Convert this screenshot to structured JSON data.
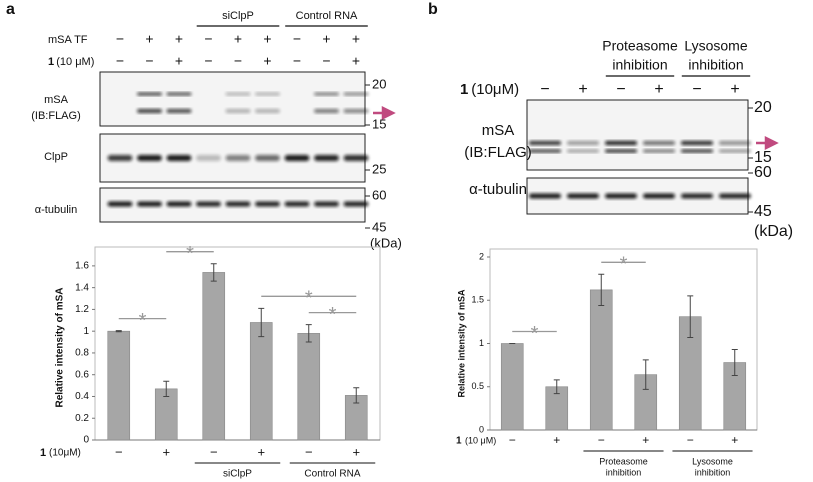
{
  "panel_labels": [
    "a",
    "b"
  ],
  "blots": [
    {
      "treatments": [
        {
          "label": "mSA TF",
          "signs": [
            "−",
            "+",
            "+",
            "−",
            "+",
            "+",
            "−",
            "+",
            "+"
          ]
        },
        {
          "compound": "1",
          "dose": "(10 μM)",
          "signs": [
            "−",
            "−",
            "+",
            "−",
            "−",
            "+",
            "−",
            "−",
            "+"
          ]
        }
      ],
      "groups": [
        {
          "label": [
            "siClpP"
          ],
          "from": 3,
          "to": 5
        },
        {
          "label": [
            "Control RNA"
          ],
          "from": 6,
          "to": 8
        }
      ],
      "rows": [
        {
          "label": [
            "mSA",
            "(IB:FLAG)"
          ],
          "markers": [
            20,
            15
          ]
        },
        {
          "label": [
            "ClpP"
          ],
          "markers": [
            25
          ]
        },
        {
          "label": [
            "α-tubulin"
          ],
          "markers": [
            60,
            45
          ]
        }
      ],
      "unit": "(kDa)"
    },
    {
      "treatments": [
        {
          "compound": "1",
          "dose": "(10μM)",
          "signs": [
            "−",
            "+",
            "−",
            "+",
            "−",
            "+"
          ]
        }
      ],
      "groups": [
        {
          "label": [
            "Proteasome",
            "inhibition"
          ],
          "from": 2,
          "to": 3
        },
        {
          "label": [
            "Lysosome",
            "inhibition"
          ],
          "from": 4,
          "to": 5
        }
      ],
      "rows": [
        {
          "label": [
            "mSA",
            "(IB:FLAG)"
          ],
          "markers": [
            20,
            15
          ]
        },
        {
          "label": [
            "α-tubulin"
          ],
          "markers": [
            60,
            45
          ]
        }
      ],
      "unit": "(kDa)"
    }
  ],
  "chart_data": [
    {
      "type": "bar",
      "ylabel": "Relative intensity of mSA",
      "xlabel": {
        "compound": "1",
        "dose": "(10μM)"
      },
      "categories": [
        "−",
        "+",
        "−",
        "+",
        "−",
        "+"
      ],
      "series": [
        {
          "color": "#a6a6a6",
          "values": [
            1.0,
            0.47,
            1.54,
            1.08,
            0.98,
            0.41
          ],
          "errors": [
            0.005,
            0.07,
            0.08,
            0.13,
            0.08,
            0.07
          ]
        }
      ],
      "ylim": [
        0,
        1.7
      ],
      "yticks": [
        0,
        0.2,
        0.4,
        0.6,
        0.8,
        1,
        1.2,
        1.4,
        1.6
      ],
      "groups": [
        {
          "label": [
            "siClpP"
          ],
          "from": 2,
          "to": 3
        },
        {
          "label": [
            "Control RNA"
          ],
          "from": 4,
          "to": 5
        }
      ],
      "brackets": [
        {
          "label": "*",
          "from": 0,
          "to": 1
        },
        {
          "label": "*",
          "from": 1,
          "to": 2
        },
        {
          "label": "*",
          "from": 3,
          "to": 5
        },
        {
          "label": "*",
          "from": 4,
          "to": 5
        }
      ]
    },
    {
      "type": "bar",
      "ylabel": "Relative intensity of mSA",
      "xlabel": {
        "compound": "1",
        "dose": "(10 μM)"
      },
      "categories": [
        "−",
        "+",
        "−",
        "+",
        "−",
        "+"
      ],
      "series": [
        {
          "color": "#a6a6a6",
          "values": [
            1.0,
            0.5,
            1.62,
            0.64,
            1.31,
            0.78
          ],
          "errors": [
            0,
            0.08,
            0.18,
            0.17,
            0.24,
            0.15
          ]
        }
      ],
      "ylim": [
        0,
        2
      ],
      "yticks": [
        0,
        0.5,
        1,
        1.5,
        2
      ],
      "groups": [
        {
          "label": [
            "Proteasome",
            "inhibition"
          ],
          "from": 2,
          "to": 3
        },
        {
          "label": [
            "Lysosome",
            "inhibition"
          ],
          "from": 4,
          "to": 5
        }
      ],
      "brackets": [
        {
          "label": "*",
          "from": 0,
          "to": 1
        },
        {
          "label": "*",
          "from": 2,
          "to": 3
        }
      ]
    }
  ]
}
